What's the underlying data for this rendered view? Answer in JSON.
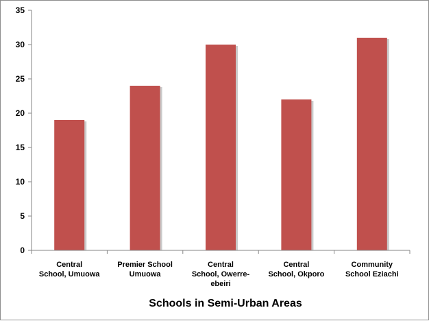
{
  "chart_data": {
    "type": "bar",
    "title": "",
    "xlabel": "Schools in Semi-Urban Areas",
    "ylabel": "",
    "categories": [
      [
        "Central",
        "School, Umuowa"
      ],
      [
        "Premier School",
        "Umuowa"
      ],
      [
        "Central",
        "School, Owerre-",
        "ebeiri"
      ],
      [
        "Central",
        "School, Okporo"
      ],
      [
        "Community",
        "School Eziachi"
      ]
    ],
    "values": [
      19,
      24,
      30,
      22,
      31
    ],
    "ylim": [
      0,
      35
    ],
    "yticks": [
      0,
      5,
      10,
      15,
      20,
      25,
      30,
      35
    ],
    "grid": false,
    "legend": "none",
    "colors": {
      "bar": "#c0504d",
      "bar_shadow": "#a6a6a6",
      "axis": "#868686"
    }
  }
}
